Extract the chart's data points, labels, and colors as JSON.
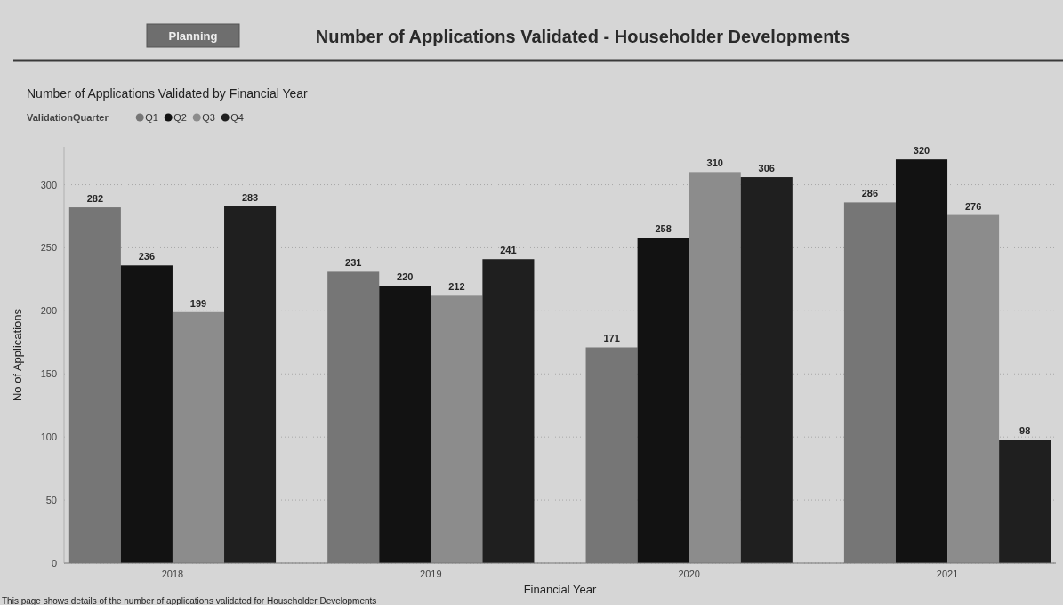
{
  "chart_data": {
    "type": "bar",
    "title": "Number of Applications Validated - Householder Developments",
    "subtitle": "Number of Applications Validated by Financial Year",
    "xlabel": "Financial Year",
    "ylabel": "No of Applications",
    "legend_title": "ValidationQuarter",
    "categories": [
      "2018",
      "2019",
      "2020",
      "2021"
    ],
    "series": [
      {
        "name": "Q1",
        "color": "#767676",
        "values": [
          282,
          231,
          171,
          286
        ]
      },
      {
        "name": "Q2",
        "color": "#121212",
        "values": [
          236,
          220,
          258,
          320
        ]
      },
      {
        "name": "Q3",
        "color": "#8c8c8c",
        "values": [
          199,
          212,
          310,
          276
        ]
      },
      {
        "name": "Q4",
        "color": "#1f1f1f",
        "values": [
          283,
          241,
          306,
          98
        ]
      }
    ],
    "ylim": [
      0,
      330
    ],
    "yticks": [
      0,
      50,
      100,
      150,
      200,
      250,
      300
    ],
    "grid": "y",
    "legend": "top left",
    "data_labels": true,
    "annotations": [
      "Planning",
      "This page shows details of the number of applications validated for Householder Developments"
    ]
  }
}
